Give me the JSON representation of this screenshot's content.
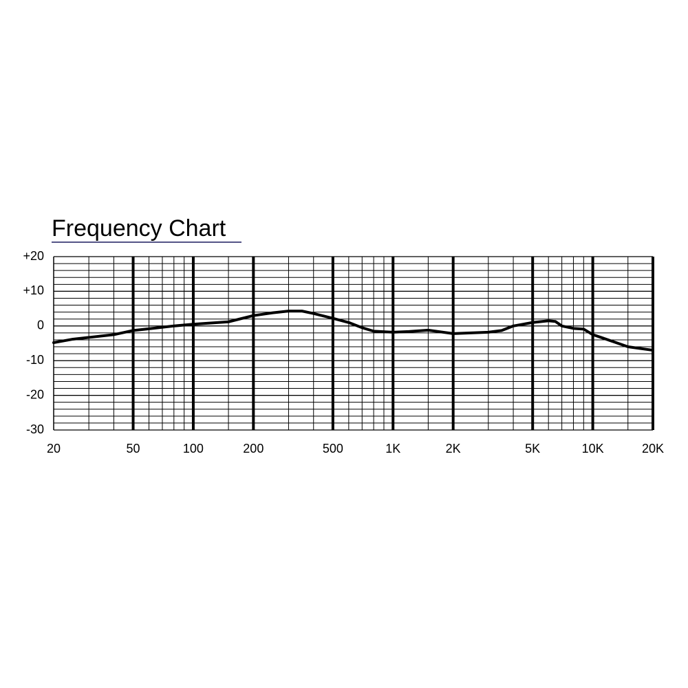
{
  "chart_data": {
    "type": "line",
    "title": "Frequency Chart",
    "x": [
      20,
      25,
      30,
      40,
      50,
      60,
      80,
      100,
      150,
      200,
      250,
      300,
      350,
      400,
      500,
      600,
      700,
      800,
      1000,
      1200,
      1500,
      2000,
      3000,
      3500,
      4000,
      5000,
      6000,
      6500,
      7000,
      8000,
      9000,
      10000,
      11000,
      15000,
      20000
    ],
    "values": [
      -4.8,
      -3.8,
      -3.3,
      -2.5,
      -1.3,
      -0.8,
      0,
      0.5,
      1.2,
      3,
      3.8,
      4.3,
      4.3,
      3.6,
      2.2,
      1,
      -0.5,
      -1.5,
      -1.8,
      -1.6,
      -1.2,
      -2.2,
      -1.8,
      -1.3,
      0,
      1,
      1.5,
      1.3,
      0,
      -0.7,
      -0.9,
      -2.5,
      -3.3,
      -6,
      -7
    ],
    "color": "#000000",
    "xlog": true,
    "xlim": [
      20,
      20000
    ],
    "xticks": [
      20,
      50,
      100,
      200,
      500,
      {
        "value": 1000,
        "label": "1K"
      },
      {
        "value": 2000,
        "label": "2K"
      },
      {
        "value": 5000,
        "label": "5K"
      },
      {
        "value": 10000,
        "label": "10K"
      },
      {
        "value": 20000,
        "label": "20K"
      }
    ],
    "x_minor_grid": [
      30,
      40,
      60,
      70,
      80,
      90,
      150,
      300,
      400,
      600,
      700,
      800,
      900,
      1500,
      3000,
      4000,
      6000,
      7000,
      8000,
      9000,
      15000
    ],
    "ylim": [
      -30,
      20
    ],
    "yticks": [
      {
        "value": 20,
        "label": "+20"
      },
      {
        "value": 10,
        "label": "+10"
      },
      0,
      -10,
      -20,
      -30
    ],
    "y_grid_step": 2
  }
}
